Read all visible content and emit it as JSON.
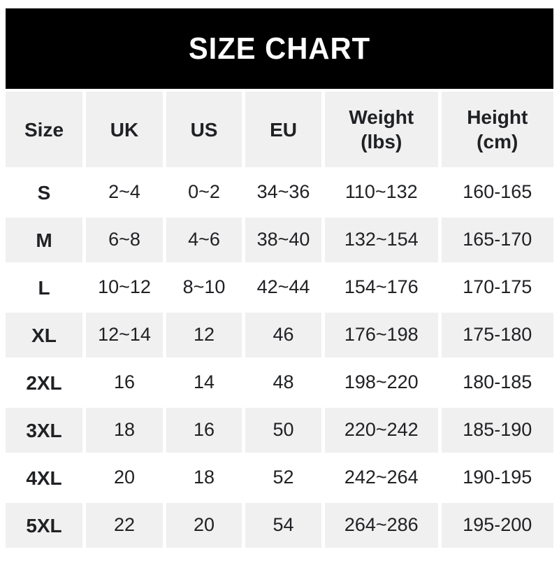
{
  "title": "SIZE CHART",
  "table": {
    "columns": [
      "Size",
      "UK",
      "US",
      "EU",
      "Weight\n(lbs)",
      "Height\n(cm)"
    ],
    "column_keys": [
      "size",
      "uk",
      "us",
      "eu",
      "weight",
      "height"
    ],
    "rows": [
      {
        "size": "S",
        "uk": "2~4",
        "us": "0~2",
        "eu": "34~36",
        "weight": "110~132",
        "height": "160-165"
      },
      {
        "size": "M",
        "uk": "6~8",
        "us": "4~6",
        "eu": "38~40",
        "weight": "132~154",
        "height": "165-170"
      },
      {
        "size": "L",
        "uk": "10~12",
        "us": "8~10",
        "eu": "42~44",
        "weight": "154~176",
        "height": "170-175"
      },
      {
        "size": "XL",
        "uk": "12~14",
        "us": "12",
        "eu": "46",
        "weight": "176~198",
        "height": "175-180"
      },
      {
        "size": "2XL",
        "uk": "16",
        "us": "14",
        "eu": "48",
        "weight": "198~220",
        "height": "180-185"
      },
      {
        "size": "3XL",
        "uk": "18",
        "us": "16",
        "eu": "50",
        "weight": "220~242",
        "height": "185-190"
      },
      {
        "size": "4XL",
        "uk": "20",
        "us": "18",
        "eu": "52",
        "weight": "242~264",
        "height": "190-195"
      },
      {
        "size": "5XL",
        "uk": "22",
        "us": "20",
        "eu": "54",
        "weight": "264~286",
        "height": "195-200"
      }
    ]
  },
  "colors": {
    "banner_bg": "#000000",
    "banner_text": "#ffffff",
    "alt_row_bg": "#f0f0f0",
    "row_bg": "#ffffff",
    "text": "#202124"
  }
}
